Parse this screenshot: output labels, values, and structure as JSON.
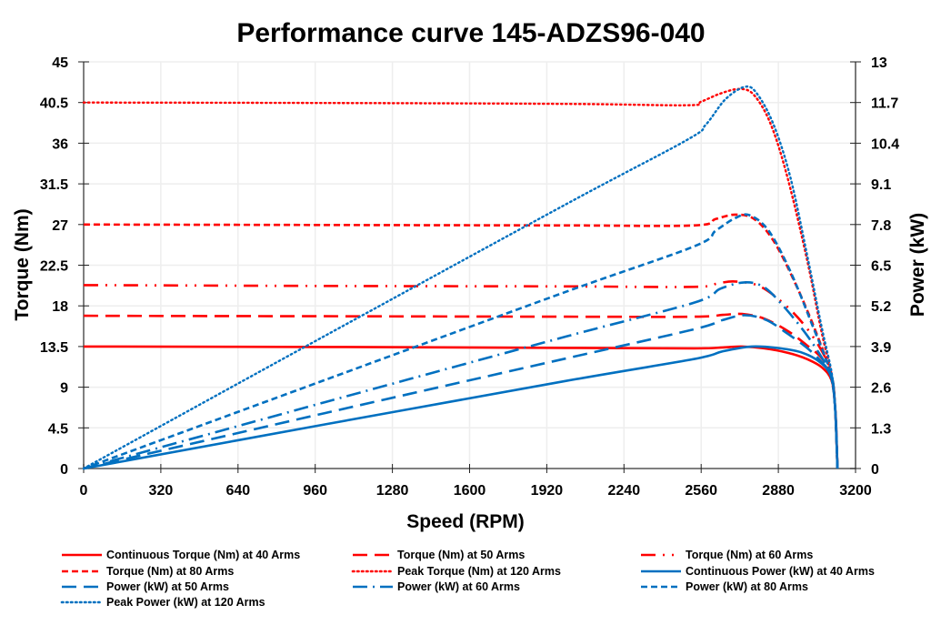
{
  "chart_data": {
    "type": "line",
    "title": "Performance curve 145-ADZS96-040",
    "xlabel": "Speed (RPM)",
    "ylabel": "Torque (Nm)",
    "y2label": "Power (kW)",
    "xlim": [
      0,
      3200
    ],
    "ylim": [
      0,
      45
    ],
    "y2lim": [
      0,
      13
    ],
    "grid": true,
    "legend_position": "bottom",
    "x_ticks": [
      "0",
      "320",
      "640",
      "960",
      "1280",
      "1600",
      "1920",
      "2240",
      "2560",
      "2880",
      "3200"
    ],
    "y_ticks": [
      "0",
      "4.5",
      "9",
      "13.5",
      "18",
      "22.5",
      "27",
      "31.5",
      "36",
      "40.5",
      "45"
    ],
    "y2_ticks": [
      "0",
      "1.3",
      "2.6",
      "3.9",
      "5.2",
      "6.5",
      "7.8",
      "9.1",
      "10.4",
      "11.7",
      "13"
    ],
    "series": [
      {
        "name": "Continuous Torque (Nm) at 40 Arms",
        "axis": "left",
        "color": "#ff0000",
        "style": "solid",
        "x": [
          0,
          1000,
          2000,
          2530,
          2650,
          2730,
          2820,
          2920,
          3000,
          3060,
          3100,
          3115,
          3125
        ],
        "y": [
          13.5,
          13.45,
          13.35,
          13.3,
          13.4,
          13.5,
          13.3,
          12.8,
          12.1,
          11.2,
          9.8,
          7.0,
          0
        ]
      },
      {
        "name": "Torque (Nm) at 50 Arms",
        "axis": "left",
        "color": "#ff0000",
        "style": "longdash",
        "x": [
          0,
          1000,
          2000,
          2530,
          2650,
          2730,
          2820,
          2920,
          3000,
          3060,
          3100,
          3115,
          3125
        ],
        "y": [
          16.9,
          16.85,
          16.8,
          16.8,
          17.0,
          17.1,
          16.6,
          15.2,
          13.6,
          12.2,
          10.2,
          7.0,
          0
        ]
      },
      {
        "name": "Torque (Nm) at 60 Arms",
        "axis": "left",
        "color": "#ff0000",
        "style": "dashdotdot",
        "x": [
          0,
          1000,
          2000,
          2530,
          2630,
          2700,
          2800,
          2900,
          2990,
          3060,
          3100,
          3115,
          3125
        ],
        "y": [
          20.3,
          20.2,
          20.15,
          20.1,
          20.5,
          20.7,
          20.2,
          18.3,
          15.8,
          13.0,
          10.5,
          7.0,
          0
        ]
      },
      {
        "name": "Torque (Nm) at 80 Arms",
        "axis": "left",
        "color": "#ff0000",
        "style": "shortdash",
        "x": [
          0,
          1000,
          2000,
          2530,
          2620,
          2700,
          2780,
          2860,
          2950,
          3030,
          3090,
          3115,
          3125
        ],
        "y": [
          27.0,
          26.95,
          26.9,
          26.9,
          27.6,
          28.1,
          27.6,
          25.2,
          20.5,
          15.5,
          11.0,
          7.0,
          0
        ]
      },
      {
        "name": "Peak Torque (Nm) at 120 Arms",
        "axis": "left",
        "color": "#ff0000",
        "style": "dotted",
        "x": [
          0,
          1000,
          2000,
          2500,
          2560,
          2640,
          2720,
          2780,
          2850,
          2920,
          3000,
          3060,
          3100,
          3115,
          3125
        ],
        "y": [
          40.5,
          40.45,
          40.35,
          40.2,
          40.6,
          41.5,
          42.0,
          41.3,
          38.0,
          32.0,
          23.0,
          15.0,
          10.5,
          7.0,
          0
        ]
      },
      {
        "name": "Continuous Power (kW) at 40 Arms",
        "axis": "right",
        "color": "#0070c0",
        "style": "solid",
        "x": [
          0,
          1000,
          2000,
          2530,
          2650,
          2770,
          2880,
          2980,
          3060,
          3100,
          3115,
          3125
        ],
        "y": [
          0,
          1.41,
          2.8,
          3.5,
          3.75,
          3.9,
          3.85,
          3.7,
          3.35,
          2.9,
          2.0,
          0
        ]
      },
      {
        "name": "Power (kW) at 50 Arms",
        "axis": "right",
        "color": "#0070c0",
        "style": "longdash",
        "x": [
          0,
          1000,
          2000,
          2530,
          2650,
          2740,
          2830,
          2920,
          3000,
          3060,
          3100,
          3115,
          3125
        ],
        "y": [
          0,
          1.77,
          3.52,
          4.45,
          4.75,
          4.9,
          4.75,
          4.3,
          3.85,
          3.4,
          2.95,
          2.0,
          0
        ]
      },
      {
        "name": "Power (kW) at 60 Arms",
        "axis": "right",
        "color": "#0070c0",
        "style": "dashdot",
        "x": [
          0,
          1000,
          2000,
          2530,
          2640,
          2740,
          2820,
          2900,
          2990,
          3060,
          3100,
          3115,
          3125
        ],
        "y": [
          0,
          2.12,
          4.22,
          5.3,
          5.75,
          5.95,
          5.8,
          5.2,
          4.35,
          3.55,
          3.0,
          2.0,
          0
        ]
      },
      {
        "name": "Power (kW) at 80 Arms",
        "axis": "right",
        "color": "#0070c0",
        "style": "shortdash",
        "x": [
          0,
          1000,
          2000,
          2530,
          2620,
          2700,
          2760,
          2840,
          2930,
          3020,
          3090,
          3115,
          3125
        ],
        "y": [
          0,
          2.83,
          5.65,
          7.1,
          7.6,
          8.0,
          8.1,
          7.6,
          6.3,
          4.6,
          3.2,
          2.0,
          0
        ]
      },
      {
        "name": "Peak Power (kW) at 120 Arms",
        "axis": "right",
        "color": "#0070c0",
        "style": "dotted",
        "x": [
          0,
          1000,
          2000,
          2500,
          2580,
          2660,
          2740,
          2790,
          2860,
          2930,
          3000,
          3060,
          3100,
          3115,
          3125
        ],
        "y": [
          0,
          4.24,
          8.45,
          10.5,
          11.0,
          11.8,
          12.2,
          12.0,
          11.0,
          9.3,
          6.8,
          4.5,
          3.1,
          2.0,
          0
        ]
      }
    ]
  }
}
